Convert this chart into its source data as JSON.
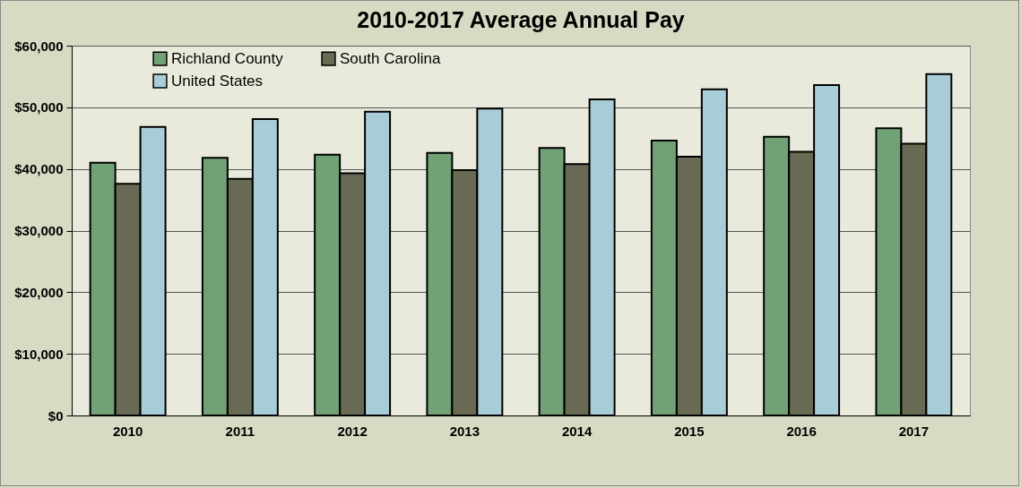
{
  "chart_data": {
    "type": "bar",
    "title": "2010-2017 Average Annual Pay",
    "categories": [
      "2010",
      "2011",
      "2012",
      "2013",
      "2014",
      "2015",
      "2016",
      "2017"
    ],
    "series": [
      {
        "name": "Richland County",
        "color": "#71a276",
        "values": [
          41000,
          41800,
          42300,
          42600,
          43400,
          44600,
          45200,
          46600
        ]
      },
      {
        "name": "South Carolina",
        "color": "#686a53",
        "values": [
          37600,
          38400,
          39300,
          39800,
          40800,
          42000,
          42800,
          44100
        ]
      },
      {
        "name": "United States",
        "color": "#a9cdd8",
        "values": [
          46800,
          48100,
          49300,
          49800,
          51300,
          52900,
          53600,
          55400
        ]
      }
    ],
    "ylim": [
      0,
      60000
    ],
    "yticks": [
      {
        "value": 0,
        "label": "$0"
      },
      {
        "value": 10000,
        "label": "$10,000"
      },
      {
        "value": 20000,
        "label": "$20,000"
      },
      {
        "value": 30000,
        "label": "$30,000"
      },
      {
        "value": 40000,
        "label": "$40,000"
      },
      {
        "value": 50000,
        "label": "$50,000"
      },
      {
        "value": 60000,
        "label": "$60,000"
      }
    ],
    "grid": "y",
    "legend": "top left"
  }
}
